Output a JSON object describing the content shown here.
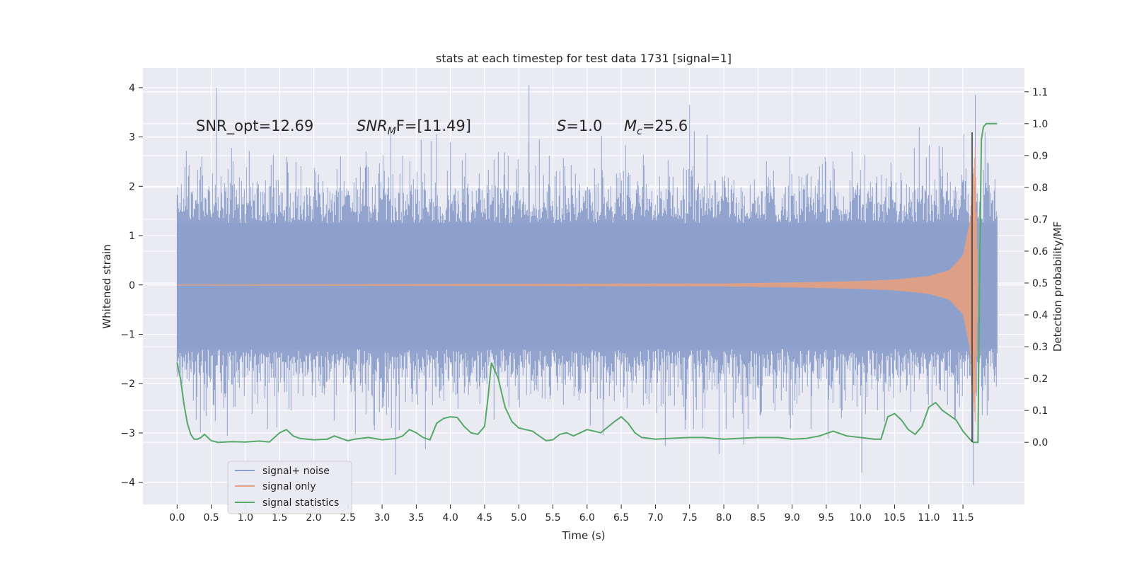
{
  "chart_data": {
    "type": "line",
    "title": "stats at each timestep for test data 1731 [signal=1]",
    "xlabel": "Time (s)",
    "ylabel_left": "Whitened strain",
    "ylabel_right": "Detection probability/MF",
    "xlim": [
      -0.5,
      12.4
    ],
    "ylim_left": [
      -4.45,
      4.4
    ],
    "ylim_right": [
      -0.195,
      1.175
    ],
    "x_ticks": [
      "0.0",
      "0.5",
      "1.0",
      "1.5",
      "2.0",
      "2.5",
      "3.0",
      "3.5",
      "4.0",
      "4.5",
      "5.0",
      "5.5",
      "6.0",
      "6.5",
      "7.0",
      "7.5",
      "8.0",
      "8.5",
      "9.0",
      "9.5",
      "10.0",
      "10.5",
      "11.0",
      "11.5"
    ],
    "x_tick_values": [
      0,
      0.5,
      1,
      1.5,
      2,
      2.5,
      3,
      3.5,
      4,
      4.5,
      5,
      5.5,
      6,
      6.5,
      7,
      7.5,
      8,
      8.5,
      9,
      9.5,
      10,
      10.5,
      11,
      11.5
    ],
    "y_ticks_left": [
      "−4",
      "−3",
      "−2",
      "−1",
      "0",
      "1",
      "2",
      "3",
      "4"
    ],
    "y_tick_values_left": [
      -4,
      -3,
      -2,
      -1,
      0,
      1,
      2,
      3,
      4
    ],
    "y_ticks_right": [
      "0.0",
      "0.1",
      "0.2",
      "0.3",
      "0.4",
      "0.5",
      "0.6",
      "0.7",
      "0.8",
      "0.9",
      "1.0",
      "1.1"
    ],
    "y_tick_values_right": [
      0,
      0.1,
      0.2,
      0.3,
      0.4,
      0.5,
      0.6,
      0.7,
      0.8,
      0.9,
      1.0,
      1.1
    ],
    "annotations": {
      "snr_opt": "SNR_opt=12.69",
      "snr_mf_sym": "SNR",
      "snr_mf_sub": "M",
      "snr_mf_rest": "F=[11.49]",
      "s_sym": "S",
      "s_rest": "=1.0",
      "mc_sym": "M",
      "mc_sub": "c",
      "mc_rest": "=25.6"
    },
    "legend": {
      "position": "lower-left",
      "entries": [
        "signal+ noise",
        "signal only",
        "signal statistics"
      ]
    },
    "series": [
      {
        "name": "signal+ noise",
        "axis": "left",
        "color": "#8da0cb",
        "t_start": 0.0,
        "t_end": 12.0,
        "envelope_typical": [
          -1.3,
          1.25
        ],
        "peak_extremes": [
          {
            "x": 0.58,
            "y": 4.0
          },
          {
            "x": 4.0,
            "y": 2.9
          },
          {
            "x": 5.15,
            "y": 4.05
          },
          {
            "x": 7.5,
            "y": 3.65
          },
          {
            "x": 11.68,
            "y": 3.85
          },
          {
            "x": 3.2,
            "y": -3.85
          },
          {
            "x": 10.02,
            "y": -3.8
          },
          {
            "x": 11.65,
            "y": -4.05
          }
        ]
      },
      {
        "name": "signal only",
        "axis": "left",
        "color": "#e5a080",
        "description_x": [
          0,
          8,
          9,
          10,
          10.5,
          11,
          11.3,
          11.5,
          11.6,
          11.68,
          11.72
        ],
        "amplitude": [
          0.01,
          0.03,
          0.05,
          0.08,
          0.11,
          0.18,
          0.3,
          0.6,
          1.3,
          2.8,
          0.0
        ]
      },
      {
        "name": "signal statistics",
        "axis": "right",
        "color": "#55a868",
        "x": [
          0.0,
          0.05,
          0.1,
          0.15,
          0.2,
          0.25,
          0.3,
          0.35,
          0.4,
          0.45,
          0.5,
          0.6,
          0.8,
          1.0,
          1.2,
          1.35,
          1.5,
          1.6,
          1.7,
          1.8,
          2.0,
          2.2,
          2.3,
          2.5,
          2.6,
          2.8,
          3.0,
          3.2,
          3.3,
          3.4,
          3.5,
          3.6,
          3.7,
          3.8,
          3.9,
          4.0,
          4.1,
          4.2,
          4.3,
          4.4,
          4.5,
          4.55,
          4.6,
          4.7,
          4.8,
          4.9,
          5.0,
          5.1,
          5.2,
          5.3,
          5.4,
          5.5,
          5.6,
          5.7,
          5.8,
          6.0,
          6.2,
          6.4,
          6.5,
          6.6,
          6.7,
          6.8,
          7.0,
          7.2,
          7.5,
          7.7,
          8.0,
          8.2,
          8.5,
          8.8,
          9.0,
          9.2,
          9.4,
          9.6,
          9.8,
          10.0,
          10.2,
          10.3,
          10.4,
          10.5,
          10.6,
          10.7,
          10.8,
          10.9,
          11.0,
          11.1,
          11.2,
          11.3,
          11.4,
          11.5,
          11.6,
          11.65,
          11.7,
          11.72,
          11.74,
          11.77,
          11.8,
          11.84,
          11.87,
          11.92,
          11.95,
          12.0
        ],
        "y": [
          0.25,
          0.2,
          0.12,
          0.06,
          0.025,
          0.01,
          0.01,
          0.015,
          0.025,
          0.015,
          0.005,
          0.0,
          0.002,
          0.001,
          0.004,
          0.001,
          0.03,
          0.04,
          0.02,
          0.012,
          0.008,
          0.01,
          0.02,
          0.005,
          0.01,
          0.015,
          0.008,
          0.012,
          0.02,
          0.04,
          0.03,
          0.015,
          0.008,
          0.06,
          0.075,
          0.08,
          0.078,
          0.05,
          0.03,
          0.025,
          0.05,
          0.14,
          0.25,
          0.2,
          0.11,
          0.065,
          0.045,
          0.04,
          0.035,
          0.02,
          0.005,
          0.008,
          0.025,
          0.03,
          0.02,
          0.04,
          0.03,
          0.065,
          0.08,
          0.06,
          0.03,
          0.015,
          0.01,
          0.012,
          0.015,
          0.015,
          0.01,
          0.012,
          0.015,
          0.015,
          0.01,
          0.012,
          0.02,
          0.035,
          0.02,
          0.015,
          0.01,
          0.01,
          0.08,
          0.09,
          0.07,
          0.04,
          0.025,
          0.05,
          0.11,
          0.125,
          0.1,
          0.085,
          0.07,
          0.035,
          0.01,
          0.0,
          0.0,
          0.0,
          0.45,
          0.95,
          0.99,
          1.0,
          1.0,
          1.0,
          1.0,
          1.0
        ]
      }
    ]
  }
}
